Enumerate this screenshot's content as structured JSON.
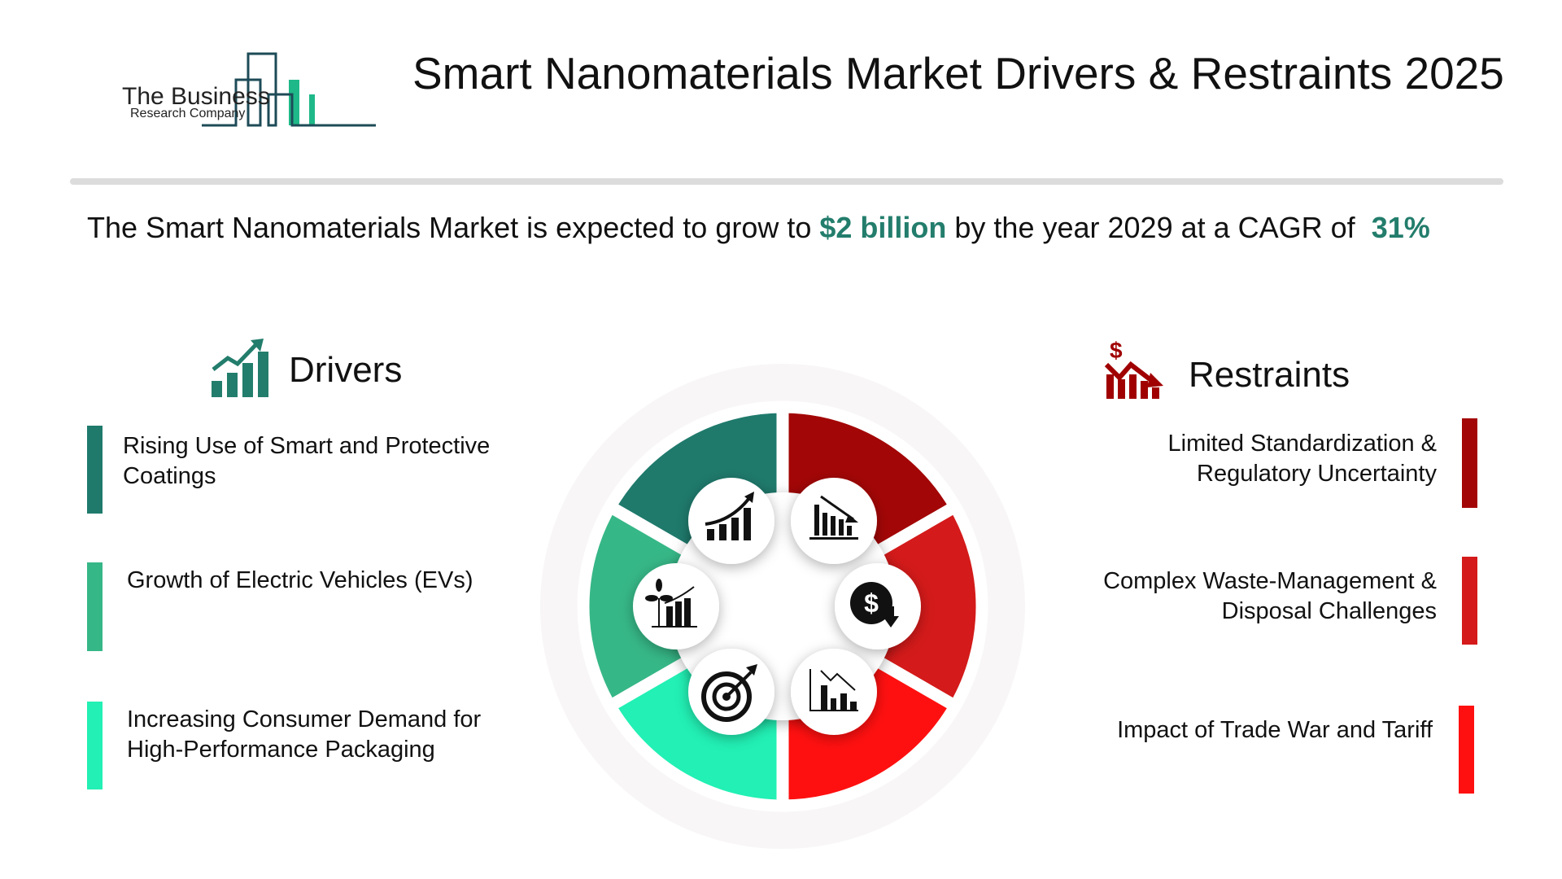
{
  "logo": {
    "line1": "The Business",
    "line2": "Research Company"
  },
  "header": {
    "title": "Smart Nanomaterials Market Drivers & Restraints 2025"
  },
  "summary": {
    "prefix": "The Smart Nanomaterials Market is expected to grow to ",
    "value": "$2 billion",
    "middle": " by the year 2029 at a CAGR of ",
    "cagr": "31%"
  },
  "drivers": {
    "title": "Drivers",
    "icon": "growth-chart-icon",
    "items": [
      {
        "label": "Rising Use of Smart and Protective Coatings",
        "color": "#1f7a6c"
      },
      {
        "label": "Growth of Electric Vehicles (EVs)",
        "color": "#36b787"
      },
      {
        "label": "Increasing Consumer Demand for High-Performance Packaging",
        "color": "#22f0b4"
      }
    ]
  },
  "restraints": {
    "title": "Restraints",
    "icon": "declining-dollar-chart-icon",
    "items": [
      {
        "label": "Limited Standardization & Regulatory Uncertainty",
        "color": "#a30606"
      },
      {
        "label": "Complex Waste-Management & Disposal Challenges",
        "color": "#d41a1a"
      },
      {
        "label": "Impact of Trade War and Tariff",
        "color": "#ff1010"
      }
    ]
  },
  "colors": {
    "accent": "#237d6c",
    "restraint_icon": "#a00000",
    "text": "#111111"
  }
}
